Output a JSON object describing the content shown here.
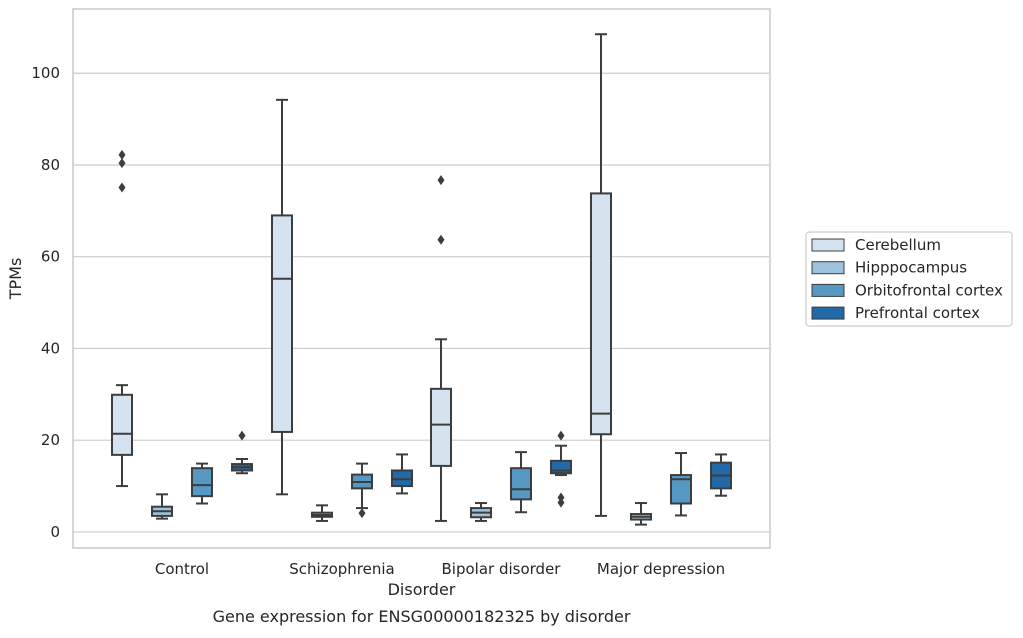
{
  "chart_data": {
    "type": "boxplot",
    "xlabel": "Disorder",
    "ylabel": "TPMs",
    "caption": "Gene expression for ENSG00000182325 by disorder",
    "ylim": [
      -3.5,
      114
    ],
    "yticks": [
      0,
      20,
      40,
      60,
      80,
      100
    ],
    "grid": true,
    "legend_placement": "right",
    "categories": [
      "Control",
      "Schizophrenia",
      "Bipolar disorder",
      "Major depression"
    ],
    "series": [
      {
        "name": "Cerebellum",
        "color": "#d5e3f1",
        "boxes": [
          {
            "whislo": 10,
            "q1": 16.8,
            "med": 21.4,
            "q3": 29.9,
            "whishi": 32,
            "fliers": [
              75.1,
              80.4,
              82.2
            ]
          },
          {
            "whislo": 8.2,
            "q1": 21.8,
            "med": 55.2,
            "q3": 69,
            "whishi": 94.2,
            "fliers": []
          },
          {
            "whislo": 2.4,
            "q1": 14.4,
            "med": 23.4,
            "q3": 31.2,
            "whishi": 42,
            "fliers": [
              63.7,
              76.7
            ]
          },
          {
            "whislo": 3.5,
            "q1": 21.3,
            "med": 25.8,
            "q3": 73.8,
            "whishi": 108.5,
            "fliers": []
          }
        ]
      },
      {
        "name": "Hipppocampus",
        "color": "#9dc3dd",
        "boxes": [
          {
            "whislo": 2.9,
            "q1": 3.5,
            "med": 4.5,
            "q3": 5.5,
            "whishi": 8.2,
            "fliers": []
          },
          {
            "whislo": 2.4,
            "q1": 3.3,
            "med": 3.7,
            "q3": 4.2,
            "whishi": 5.8,
            "fliers": []
          },
          {
            "whislo": 2.4,
            "q1": 3.2,
            "med": 4.2,
            "q3": 5.2,
            "whishi": 6.3,
            "fliers": []
          },
          {
            "whislo": 1.6,
            "q1": 2.7,
            "med": 3.3,
            "q3": 3.9,
            "whishi": 6.3,
            "fliers": []
          }
        ]
      },
      {
        "name": "Orbitofrontal cortex",
        "color": "#5598c4",
        "boxes": [
          {
            "whislo": 6.2,
            "q1": 7.8,
            "med": 10.2,
            "q3": 13.9,
            "whishi": 14.9,
            "fliers": []
          },
          {
            "whislo": 5.2,
            "q1": 9.5,
            "med": 10.9,
            "q3": 12.5,
            "whishi": 14.9,
            "fliers": [
              4.1
            ]
          },
          {
            "whislo": 4.3,
            "q1": 7.1,
            "med": 9.3,
            "q3": 13.9,
            "whishi": 17.4,
            "fliers": []
          },
          {
            "whislo": 3.6,
            "q1": 6.2,
            "med": 11.5,
            "q3": 12.4,
            "whishi": 17.2,
            "fliers": []
          }
        ]
      },
      {
        "name": "Prefrontal cortex",
        "color": "#2469a7",
        "boxes": [
          {
            "whislo": 12.8,
            "q1": 13.4,
            "med": 14.1,
            "q3": 14.8,
            "whishi": 15.9,
            "fliers": [
              21
            ]
          },
          {
            "whislo": 8.4,
            "q1": 10,
            "med": 11.5,
            "q3": 13.4,
            "whishi": 16.9,
            "fliers": []
          },
          {
            "whislo": 12.4,
            "q1": 12.8,
            "med": 13.4,
            "q3": 15.5,
            "whishi": 18.8,
            "fliers": [
              6.4,
              7.5,
              21
            ]
          },
          {
            "whislo": 7.9,
            "q1": 9.5,
            "med": 12.3,
            "q3": 15.1,
            "whishi": 16.9,
            "fliers": []
          }
        ]
      }
    ]
  }
}
